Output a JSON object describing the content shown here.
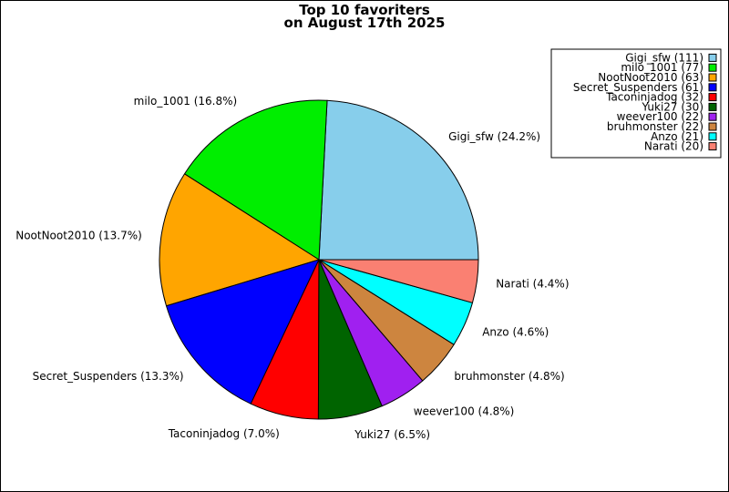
{
  "chart_data": {
    "type": "pie",
    "title_lines": [
      "Top 10 favoriters",
      "on August 17th 2025"
    ],
    "slices": [
      {
        "name": "Gigi_sfw",
        "value": 111,
        "percent_label": "Gigi_sfw (24.2%)",
        "legend_label": "Gigi_sfw (111)",
        "color": "#87ceeb"
      },
      {
        "name": "milo_1001",
        "value": 77,
        "percent_label": "milo_1001 (16.8%)",
        "legend_label": "milo_1001 (77)",
        "color": "#00ee00"
      },
      {
        "name": "NootNoot2010",
        "value": 63,
        "percent_label": "NootNoot2010 (13.7%)",
        "legend_label": "NootNoot2010 (63)",
        "color": "#ffa500"
      },
      {
        "name": "Secret_Suspenders",
        "value": 61,
        "percent_label": "Secret_Suspenders (13.3%)",
        "legend_label": "Secret_Suspenders (61)",
        "color": "#0000ff"
      },
      {
        "name": "Taconinjadog",
        "value": 32,
        "percent_label": "Taconinjadog (7.0%)",
        "legend_label": "Taconinjadog (32)",
        "color": "#ff0000"
      },
      {
        "name": "Yuki27",
        "value": 30,
        "percent_label": "Yuki27 (6.5%)",
        "legend_label": "Yuki27 (30)",
        "color": "#006400"
      },
      {
        "name": "weever100",
        "value": 22,
        "percent_label": "weever100 (4.8%)",
        "legend_label": "weever100 (22)",
        "color": "#a020f0"
      },
      {
        "name": "bruhmonster",
        "value": 22,
        "percent_label": "bruhmonster (4.8%)",
        "legend_label": "bruhmonster (22)",
        "color": "#cd853f"
      },
      {
        "name": "Anzo",
        "value": 21,
        "percent_label": "Anzo (4.6%)",
        "legend_label": "Anzo (21)",
        "color": "#00ffff"
      },
      {
        "name": "Narati",
        "value": 20,
        "percent_label": "Narati (4.4%)",
        "legend_label": "Narati (20)",
        "color": "#fa8072"
      }
    ],
    "start_direction": "3 o'clock",
    "direction": "counterclockwise",
    "legend_placement": "top-right"
  }
}
